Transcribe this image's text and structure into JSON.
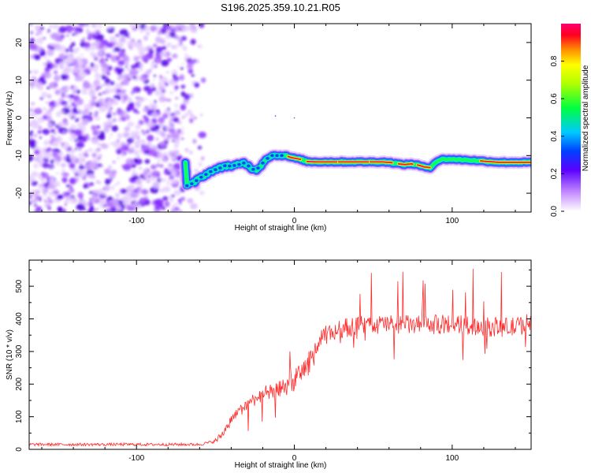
{
  "title": "S196.2025.359.10.21.R05",
  "chart_data": [
    {
      "type": "heatmap",
      "xlabel": "Height of straight line (km)",
      "ylabel": "Frequency (Hz)",
      "xlim": [
        -168,
        150
      ],
      "ylim": [
        -25,
        25
      ],
      "xticks": [
        -100,
        0,
        100
      ],
      "yticks": [
        -20,
        -10,
        0,
        10,
        20
      ],
      "noise_region_x": [
        -168,
        -58
      ],
      "ridge": {
        "x": [
          -68,
          -64,
          -60,
          -56,
          -52,
          -48,
          -44,
          -40,
          -36,
          -32,
          -28,
          -25,
          -22,
          -18,
          -14,
          -10,
          -6,
          -2,
          0,
          4,
          8,
          14,
          20,
          30,
          40,
          50,
          56,
          60,
          66,
          70,
          74,
          78,
          82,
          86,
          90,
          94,
          100,
          110,
          120,
          130,
          140,
          150
        ],
        "y": [
          -18,
          -17.3,
          -16,
          -15,
          -14,
          -13.5,
          -12.7,
          -12.8,
          -12.5,
          -12,
          -13,
          -14,
          -13,
          -11,
          -10,
          -10,
          -10,
          -10.5,
          -10.7,
          -11,
          -11.6,
          -11.7,
          -11.7,
          -11.7,
          -11.7,
          -11.7,
          -11.7,
          -11.8,
          -12.2,
          -12.4,
          -12.2,
          -12.5,
          -13,
          -13.2,
          -11.6,
          -11,
          -11,
          -11.2,
          -11.5,
          -11.8,
          -11.8,
          -11.8
        ]
      },
      "colorbar": {
        "label": "Normalized spectral amplitude",
        "range": [
          0,
          1
        ],
        "ticks": [
          "0.0",
          "0.2",
          "0.4",
          "0.6",
          "0.8"
        ]
      }
    },
    {
      "type": "line",
      "xlabel": "Height of straight line (km)",
      "ylabel": "SNR (10 * v/v)",
      "xlim": [
        -168,
        150
      ],
      "ylim": [
        0,
        580
      ],
      "xticks": [
        -100,
        0,
        100
      ],
      "yticks": [
        0,
        100,
        200,
        300,
        400,
        500
      ],
      "color": "#ff2a2a",
      "trend": {
        "x": [
          -168,
          -100,
          -60,
          -50,
          -45,
          -40,
          -30,
          -20,
          -10,
          0,
          10,
          16,
          20,
          30,
          40,
          50,
          60,
          80,
          100,
          120,
          140,
          150
        ],
        "y": [
          15,
          15,
          15,
          25,
          50,
          90,
          140,
          170,
          180,
          210,
          270,
          330,
          350,
          370,
          380,
          380,
          385,
          380,
          385,
          375,
          375,
          390
        ]
      }
    }
  ]
}
